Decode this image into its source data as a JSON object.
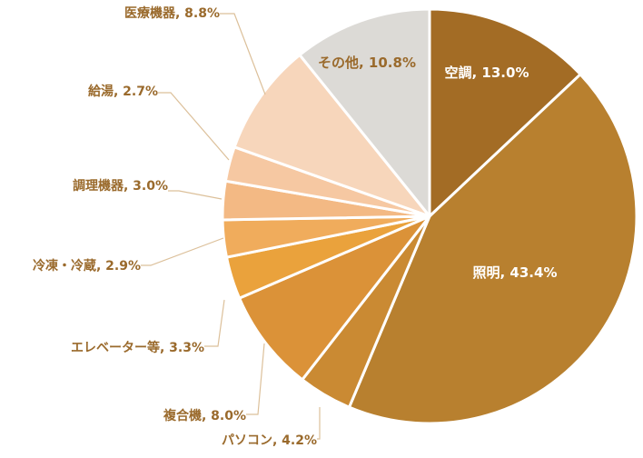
{
  "chart_data": {
    "type": "pie",
    "title": "",
    "start_angle_deg": 0,
    "direction": "clockwise",
    "slices": [
      {
        "name": "空調",
        "value": 13.0,
        "label": "空調, 13.0%",
        "color": "#a36c25",
        "placement": "inside"
      },
      {
        "name": "照明",
        "value": 43.4,
        "label": "照明, 43.4%",
        "color": "#b8802f",
        "placement": "inside"
      },
      {
        "name": "パソコン",
        "value": 4.2,
        "label": "パソコン, 4.2%",
        "color": "#ca8a33",
        "placement": "outside"
      },
      {
        "name": "複合機",
        "value": 8.0,
        "label": "複合機, 8.0%",
        "color": "#db9238",
        "placement": "outside"
      },
      {
        "name": "エレベーター等",
        "value": 3.3,
        "label": "エレベーター等, 3.3%",
        "color": "#eaa23c",
        "placement": "outside"
      },
      {
        "name": "冷凍・冷蔵",
        "value": 2.9,
        "label": "冷凍・冷蔵, 2.9%",
        "color": "#f0ac5c",
        "placement": "outside"
      },
      {
        "name": "調理機器",
        "value": 3.0,
        "label": "調理機器, 3.0%",
        "color": "#f3b984",
        "placement": "outside"
      },
      {
        "name": "給湯",
        "value": 2.7,
        "label": "給湯, 2.7%",
        "color": "#f6c8a2",
        "placement": "outside"
      },
      {
        "name": "医療機器",
        "value": 8.8,
        "label": "医療機器, 8.8%",
        "color": "#f7d6bb",
        "placement": "outside"
      },
      {
        "name": "その他",
        "value": 10.8,
        "label": "その他, 10.8%",
        "color": "#dcdad6",
        "placement": "inside"
      }
    ]
  }
}
